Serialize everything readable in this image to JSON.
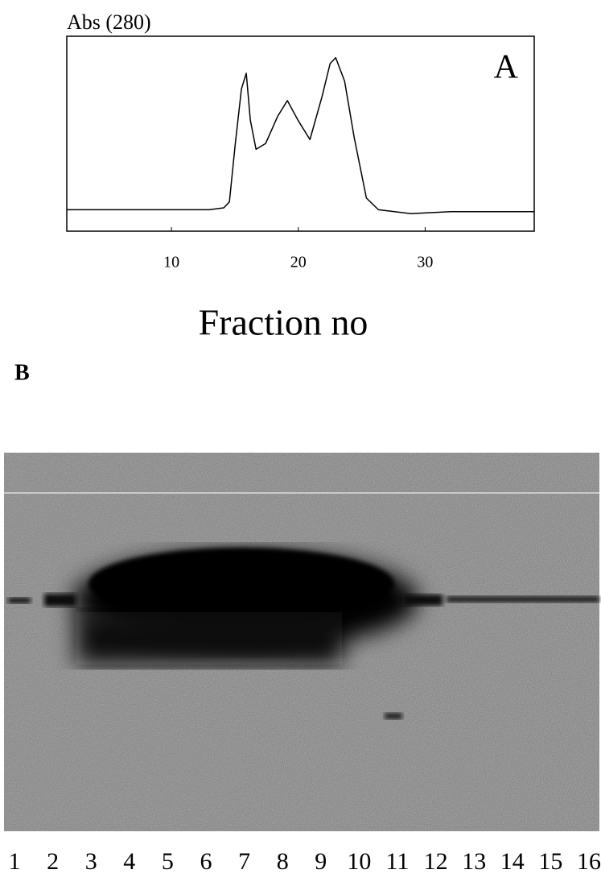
{
  "chart_data": {
    "type": "line",
    "panel_label": "A",
    "y_label": "Abs (280)",
    "x_label": "Fraction no",
    "x": [
      1.75,
      9.17,
      12.98,
      14.13,
      14.57,
      15.02,
      15.52,
      15.9,
      16.22,
      16.67,
      17.43,
      18.38,
      19.14,
      19.97,
      20.92,
      21.87,
      22.51,
      22.95,
      23.65,
      24.41,
      25.37,
      26.32,
      28.86,
      32.03,
      38.6
    ],
    "values": [
      0.11,
      0.11,
      0.11,
      0.12,
      0.15,
      0.44,
      0.73,
      0.81,
      0.57,
      0.42,
      0.45,
      0.59,
      0.67,
      0.57,
      0.47,
      0.69,
      0.86,
      0.89,
      0.77,
      0.48,
      0.17,
      0.11,
      0.09,
      0.1,
      0.1
    ],
    "color": "#000000",
    "xlim": [
      1.75,
      38.6
    ],
    "ylim": [
      0,
      1
    ],
    "xticks": [
      10,
      20,
      30
    ]
  },
  "gel": {
    "panel_label": "B",
    "lanes": [
      "1",
      "2",
      "3",
      "4",
      "5",
      "6",
      "7",
      "8",
      "9",
      "10",
      "11",
      "12",
      "13",
      "14",
      "15",
      "16"
    ]
  }
}
